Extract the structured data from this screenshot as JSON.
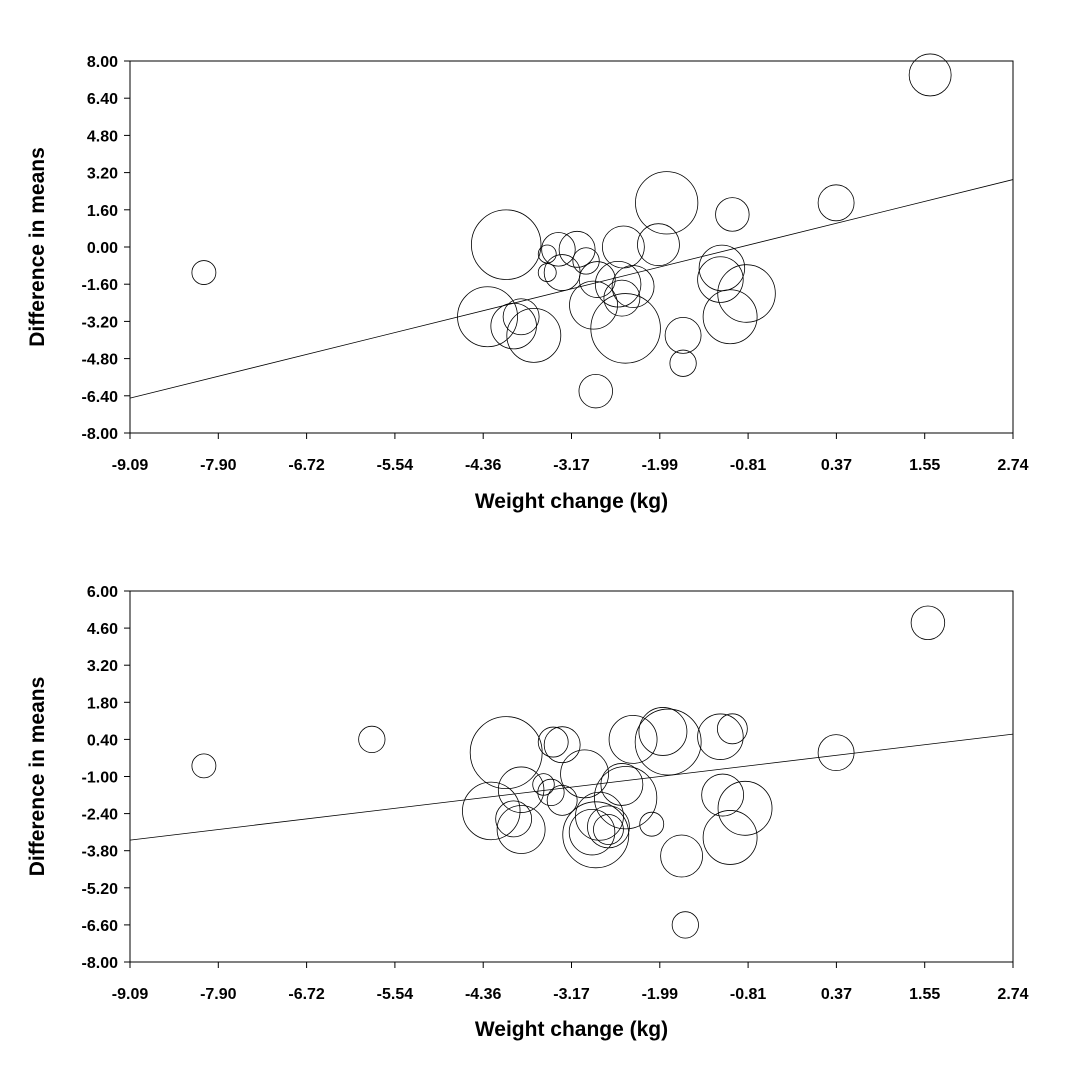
{
  "chart_data": [
    {
      "type": "scatter",
      "xlabel": "Weight change (kg)",
      "ylabel": "Difference in means",
      "xlim": [
        -9.09,
        2.74
      ],
      "ylim": [
        -8.0,
        8.0
      ],
      "x_ticks": [
        "-9.09",
        "-7.90",
        "-6.72",
        "-5.54",
        "-4.36",
        "-3.17",
        "-1.99",
        "-0.81",
        "0.37",
        "1.55",
        "2.74"
      ],
      "y_ticks": [
        "8.00",
        "6.40",
        "4.80",
        "3.20",
        "1.60",
        "0.00",
        "-1.60",
        "-3.20",
        "-4.80",
        "-6.40",
        "-8.00"
      ],
      "regression_line": {
        "x": [
          -9.09,
          2.74
        ],
        "y": [
          -6.5,
          2.9
        ]
      },
      "bubbles": [
        {
          "x": -8.1,
          "y": -1.1,
          "size": 0.2
        },
        {
          "x": 1.63,
          "y": 7.4,
          "size": 0.35
        },
        {
          "x": 0.37,
          "y": 1.9,
          "size": 0.3
        },
        {
          "x": -1.02,
          "y": 1.4,
          "size": 0.28
        },
        {
          "x": -1.9,
          "y": 1.9,
          "size": 0.52
        },
        {
          "x": -2.01,
          "y": 0.1,
          "size": 0.35
        },
        {
          "x": -4.05,
          "y": 0.1,
          "size": 0.58
        },
        {
          "x": -3.35,
          "y": -0.1,
          "size": 0.28
        },
        {
          "x": -3.5,
          "y": -0.3,
          "size": 0.15
        },
        {
          "x": -3.1,
          "y": -0.1,
          "size": 0.3
        },
        {
          "x": -2.48,
          "y": 0.0,
          "size": 0.35
        },
        {
          "x": -2.98,
          "y": -0.6,
          "size": 0.22
        },
        {
          "x": -3.5,
          "y": -1.1,
          "size": 0.15
        },
        {
          "x": -3.3,
          "y": -1.1,
          "size": 0.3
        },
        {
          "x": -2.83,
          "y": -1.4,
          "size": 0.3
        },
        {
          "x": -2.55,
          "y": -1.6,
          "size": 0.38
        },
        {
          "x": -2.35,
          "y": -1.7,
          "size": 0.35
        },
        {
          "x": -2.5,
          "y": -2.2,
          "size": 0.3
        },
        {
          "x": -2.88,
          "y": -2.5,
          "size": 0.4
        },
        {
          "x": -2.45,
          "y": -3.5,
          "size": 0.58
        },
        {
          "x": -4.3,
          "y": -3.0,
          "size": 0.5
        },
        {
          "x": -3.95,
          "y": -3.4,
          "size": 0.38
        },
        {
          "x": -3.68,
          "y": -3.8,
          "size": 0.45
        },
        {
          "x": -3.85,
          "y": -3.0,
          "size": 0.3
        },
        {
          "x": -1.68,
          "y": -3.8,
          "size": 0.3
        },
        {
          "x": -1.68,
          "y": -5.0,
          "size": 0.22
        },
        {
          "x": -2.85,
          "y": -6.2,
          "size": 0.28
        },
        {
          "x": -1.16,
          "y": -0.9,
          "size": 0.38
        },
        {
          "x": -1.18,
          "y": -1.4,
          "size": 0.38
        },
        {
          "x": -1.05,
          "y": -3.0,
          "size": 0.45
        },
        {
          "x": -0.83,
          "y": -2.0,
          "size": 0.48
        }
      ]
    },
    {
      "type": "scatter",
      "xlabel": "Weight change (kg)",
      "ylabel": "Difference in means",
      "xlim": [
        -9.09,
        2.74
      ],
      "ylim": [
        -8.0,
        6.0
      ],
      "x_ticks": [
        "-9.09",
        "-7.90",
        "-6.72",
        "-5.54",
        "-4.36",
        "-3.17",
        "-1.99",
        "-0.81",
        "0.37",
        "1.55",
        "2.74"
      ],
      "y_ticks": [
        "6.00",
        "4.60",
        "3.20",
        "1.80",
        "0.40",
        "-1.00",
        "-2.40",
        "-3.80",
        "-5.20",
        "-6.60",
        "-8.00"
      ],
      "regression_line": {
        "x": [
          -9.09,
          2.74
        ],
        "y": [
          -3.4,
          0.6
        ]
      },
      "bubbles": [
        {
          "x": -8.1,
          "y": -0.6,
          "size": 0.2
        },
        {
          "x": -5.85,
          "y": 0.4,
          "size": 0.22
        },
        {
          "x": 1.6,
          "y": 4.8,
          "size": 0.28
        },
        {
          "x": 0.37,
          "y": -0.1,
          "size": 0.3
        },
        {
          "x": -1.02,
          "y": 0.8,
          "size": 0.25
        },
        {
          "x": -1.18,
          "y": 0.5,
          "size": 0.38
        },
        {
          "x": -1.95,
          "y": 0.7,
          "size": 0.4
        },
        {
          "x": -1.88,
          "y": 0.3,
          "size": 0.55
        },
        {
          "x": -2.35,
          "y": 0.4,
          "size": 0.4
        },
        {
          "x": -4.05,
          "y": -0.1,
          "size": 0.6
        },
        {
          "x": -3.42,
          "y": 0.3,
          "size": 0.25
        },
        {
          "x": -3.3,
          "y": 0.2,
          "size": 0.3
        },
        {
          "x": -3.0,
          "y": -0.9,
          "size": 0.4
        },
        {
          "x": -2.5,
          "y": -1.3,
          "size": 0.35
        },
        {
          "x": -2.45,
          "y": -1.8,
          "size": 0.52
        },
        {
          "x": -3.55,
          "y": -1.3,
          "size": 0.18
        },
        {
          "x": -3.45,
          "y": -1.6,
          "size": 0.22
        },
        {
          "x": -3.3,
          "y": -1.9,
          "size": 0.25
        },
        {
          "x": -3.85,
          "y": -1.5,
          "size": 0.38
        },
        {
          "x": -4.25,
          "y": -2.3,
          "size": 0.48
        },
        {
          "x": -3.95,
          "y": -2.6,
          "size": 0.3
        },
        {
          "x": -3.85,
          "y": -3.0,
          "size": 0.4
        },
        {
          "x": -2.8,
          "y": -2.5,
          "size": 0.4
        },
        {
          "x": -2.68,
          "y": -2.9,
          "size": 0.35
        },
        {
          "x": -2.9,
          "y": -3.1,
          "size": 0.38
        },
        {
          "x": -2.85,
          "y": -3.2,
          "size": 0.55
        },
        {
          "x": -2.68,
          "y": -3.0,
          "size": 0.25
        },
        {
          "x": -2.1,
          "y": -2.8,
          "size": 0.2
        },
        {
          "x": -1.7,
          "y": -4.0,
          "size": 0.35
        },
        {
          "x": -1.65,
          "y": -6.6,
          "size": 0.22
        },
        {
          "x": -1.15,
          "y": -1.7,
          "size": 0.35
        },
        {
          "x": -1.05,
          "y": -3.3,
          "size": 0.45
        },
        {
          "x": -0.85,
          "y": -2.2,
          "size": 0.45
        }
      ]
    }
  ]
}
